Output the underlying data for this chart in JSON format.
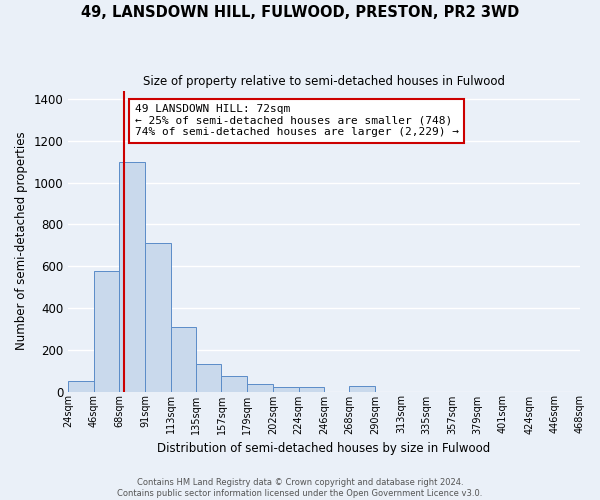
{
  "title": "49, LANSDOWN HILL, FULWOOD, PRESTON, PR2 3WD",
  "subtitle": "Size of property relative to semi-detached houses in Fulwood",
  "xlabel": "Distribution of semi-detached houses by size in Fulwood",
  "ylabel": "Number of semi-detached properties",
  "bar_color": "#c9d9ec",
  "bar_edge_color": "#5b8cc8",
  "background_color": "#eaf0f8",
  "grid_color": "#ffffff",
  "annotation_box_edge": "#cc0000",
  "annotation_line_color": "#cc0000",
  "annotation_title": "49 LANSDOWN HILL: 72sqm",
  "annotation_line1": "← 25% of semi-detached houses are smaller (748)",
  "annotation_line2": "74% of semi-detached houses are larger (2,229) →",
  "property_value": 72,
  "bin_labels": [
    "24sqm",
    "46sqm",
    "68sqm",
    "91sqm",
    "113sqm",
    "135sqm",
    "157sqm",
    "179sqm",
    "202sqm",
    "224sqm",
    "246sqm",
    "268sqm",
    "290sqm",
    "313sqm",
    "335sqm",
    "357sqm",
    "379sqm",
    "401sqm",
    "424sqm",
    "446sqm",
    "468sqm"
  ],
  "bin_edges": [
    24,
    46,
    68,
    91,
    113,
    135,
    157,
    179,
    202,
    224,
    246,
    268,
    290,
    313,
    335,
    357,
    379,
    401,
    424,
    446,
    468
  ],
  "bar_heights": [
    50,
    575,
    1100,
    710,
    310,
    130,
    75,
    35,
    20,
    20,
    0,
    25,
    0,
    0,
    0,
    0,
    0,
    0,
    0,
    0
  ],
  "ylim": [
    0,
    1440
  ],
  "yticks": [
    0,
    200,
    400,
    600,
    800,
    1000,
    1200,
    1400
  ],
  "footer_line1": "Contains HM Land Registry data © Crown copyright and database right 2024.",
  "footer_line2": "Contains public sector information licensed under the Open Government Licence v3.0."
}
